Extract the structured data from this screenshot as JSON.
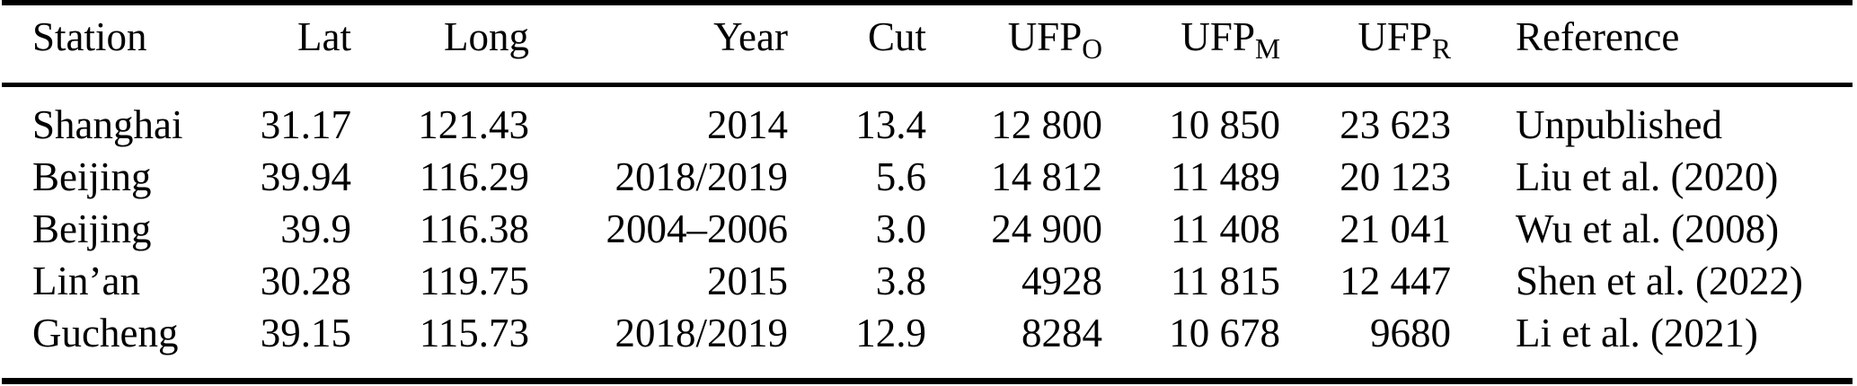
{
  "colors": {
    "text": "#000000",
    "rule": "#000000",
    "background": "#ffffff"
  },
  "table": {
    "columns": [
      {
        "label": "Station"
      },
      {
        "label": "Lat"
      },
      {
        "label": "Long"
      },
      {
        "label": "Year"
      },
      {
        "label": "Cut"
      },
      {
        "label": "UFP",
        "sub": "O"
      },
      {
        "label": "UFP",
        "sub": "M"
      },
      {
        "label": "UFP",
        "sub": "R"
      },
      {
        "label": "Reference"
      }
    ],
    "rows": [
      [
        "Shanghai",
        "31.17",
        "121.43",
        "2014",
        "13.4",
        "12 800",
        "10 850",
        "23 623",
        "Unpublished"
      ],
      [
        "Beijing",
        "39.94",
        "116.29",
        "2018/2019",
        "5.6",
        "14 812",
        "11 489",
        "20 123",
        "Liu et al. (2020)"
      ],
      [
        "Beijing",
        "39.9",
        "116.38",
        "2004–2006",
        "3.0",
        "24 900",
        "11 408",
        "21 041",
        "Wu et al. (2008)"
      ],
      [
        "Lin’an",
        "30.28",
        "119.75",
        "2015",
        "3.8",
        "4928",
        "11 815",
        "12 447",
        "Shen et al. (2022)"
      ],
      [
        "Gucheng",
        "39.15",
        "115.73",
        "2018/2019",
        "12.9",
        "8284",
        "10 678",
        "9680",
        "Li et al. (2021)"
      ]
    ]
  }
}
